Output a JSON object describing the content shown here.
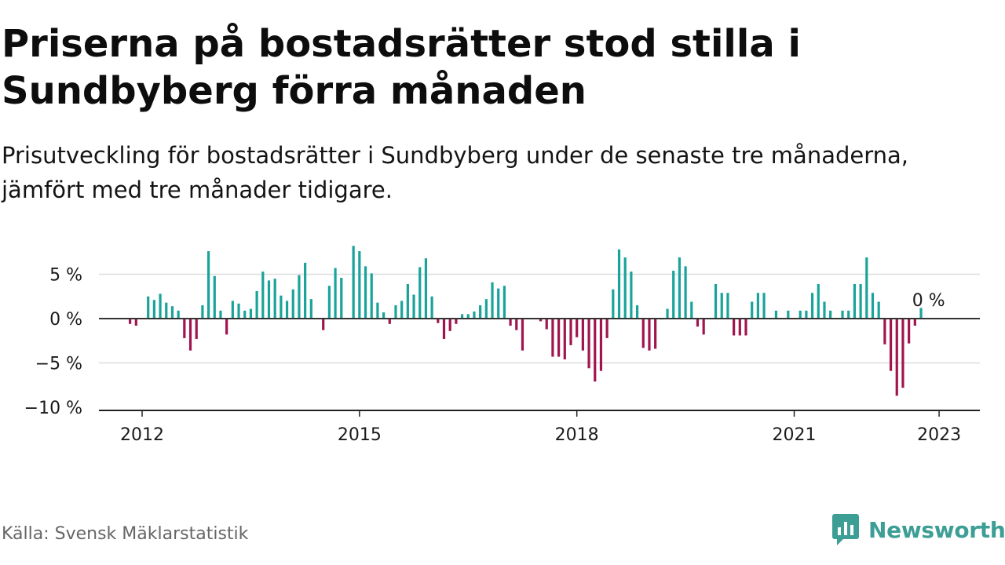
{
  "title": "Priserna på bostadsrätter stod stilla i Sundbyberg förra månaden",
  "subtitle": "Prisutveckling för bostadsrätter i Sundbyberg under de senaste tre månaderna, jämfört med tre månader tidigare.",
  "source": "Källa: Svensk Mäklarstatistik",
  "brand": {
    "name": "Newsworthy",
    "icon": "newsworthy-logo-icon",
    "color": "#3d9e96"
  },
  "colors": {
    "positive": "#1aa39a",
    "negative": "#a0154f",
    "zero_line": "#333333",
    "grid": "#dddddd"
  },
  "chart_data": {
    "type": "bar",
    "title": "",
    "xlabel": "",
    "ylabel": "",
    "ylim": [
      -10.5,
      9
    ],
    "y_ticks": [
      5,
      0,
      -5,
      -10
    ],
    "y_tick_labels": [
      "5 %",
      "0 %",
      "−5 %",
      "−10 %"
    ],
    "x_ticks": [
      "2012-01",
      "2015-01",
      "2018-01",
      "2021-01",
      "2023-01"
    ],
    "x_tick_labels": [
      "2012",
      "2015",
      "2018",
      "2021",
      "2023"
    ],
    "grid": true,
    "annotation": {
      "month": "2022-11",
      "text": "0 %"
    },
    "series": [
      {
        "values": [
          [
            "2011-11",
            -0.6
          ],
          [
            "2011-12",
            -0.8
          ],
          [
            "2012-01",
            0
          ],
          [
            "2012-02",
            2.5
          ],
          [
            "2012-03",
            2.1
          ],
          [
            "2012-04",
            2.8
          ],
          [
            "2012-05",
            1.8
          ],
          [
            "2012-06",
            1.4
          ],
          [
            "2012-07",
            0.9
          ],
          [
            "2012-08",
            -2.2
          ],
          [
            "2012-09",
            -3.6
          ],
          [
            "2012-10",
            -2.3
          ],
          [
            "2012-11",
            1.5
          ],
          [
            "2012-12",
            7.6
          ],
          [
            "2013-01",
            4.8
          ],
          [
            "2013-02",
            0.9
          ],
          [
            "2013-03",
            -1.8
          ],
          [
            "2013-04",
            2.0
          ],
          [
            "2013-05",
            1.7
          ],
          [
            "2013-06",
            0.9
          ],
          [
            "2013-07",
            1.1
          ],
          [
            "2013-08",
            3.1
          ],
          [
            "2013-09",
            5.3
          ],
          [
            "2013-10",
            4.3
          ],
          [
            "2013-11",
            4.5
          ],
          [
            "2013-12",
            2.6
          ],
          [
            "2014-01",
            2.0
          ],
          [
            "2014-02",
            3.3
          ],
          [
            "2014-03",
            4.9
          ],
          [
            "2014-04",
            6.3
          ],
          [
            "2014-05",
            2.2
          ],
          [
            "2014-06",
            0
          ],
          [
            "2014-07",
            -1.3
          ],
          [
            "2014-08",
            3.7
          ],
          [
            "2014-09",
            5.7
          ],
          [
            "2014-10",
            4.6
          ],
          [
            "2014-11",
            0
          ],
          [
            "2014-12",
            8.2
          ],
          [
            "2015-01",
            7.6
          ],
          [
            "2015-02",
            5.9
          ],
          [
            "2015-03",
            5.1
          ],
          [
            "2015-04",
            1.8
          ],
          [
            "2015-05",
            0.7
          ],
          [
            "2015-06",
            -0.6
          ],
          [
            "2015-07",
            1.5
          ],
          [
            "2015-08",
            2.0
          ],
          [
            "2015-09",
            3.9
          ],
          [
            "2015-10",
            2.7
          ],
          [
            "2015-11",
            5.8
          ],
          [
            "2015-12",
            6.8
          ],
          [
            "2016-01",
            2.5
          ],
          [
            "2016-02",
            -0.5
          ],
          [
            "2016-03",
            -2.3
          ],
          [
            "2016-04",
            -1.4
          ],
          [
            "2016-05",
            -0.6
          ],
          [
            "2016-06",
            0.5
          ],
          [
            "2016-07",
            0.5
          ],
          [
            "2016-08",
            0.8
          ],
          [
            "2016-09",
            1.5
          ],
          [
            "2016-10",
            2.2
          ],
          [
            "2016-11",
            4.1
          ],
          [
            "2016-12",
            3.4
          ],
          [
            "2017-01",
            3.7
          ],
          [
            "2017-02",
            -0.8
          ],
          [
            "2017-03",
            -1.3
          ],
          [
            "2017-04",
            -3.6
          ],
          [
            "2017-05",
            0
          ],
          [
            "2017-06",
            0
          ],
          [
            "2017-07",
            -0.3
          ],
          [
            "2017-08",
            -1.2
          ],
          [
            "2017-09",
            -4.3
          ],
          [
            "2017-10",
            -4.3
          ],
          [
            "2017-11",
            -4.6
          ],
          [
            "2017-12",
            -3.0
          ],
          [
            "2018-01",
            -2.1
          ],
          [
            "2018-02",
            -3.6
          ],
          [
            "2018-03",
            -5.6
          ],
          [
            "2018-04",
            -7.1
          ],
          [
            "2018-05",
            -5.9
          ],
          [
            "2018-06",
            -2.2
          ],
          [
            "2018-07",
            3.3
          ],
          [
            "2018-08",
            7.8
          ],
          [
            "2018-09",
            6.9
          ],
          [
            "2018-10",
            5.3
          ],
          [
            "2018-11",
            1.5
          ],
          [
            "2018-12",
            -3.3
          ],
          [
            "2019-01",
            -3.6
          ],
          [
            "2019-02",
            -3.4
          ],
          [
            "2019-03",
            -0.1
          ],
          [
            "2019-04",
            1.1
          ],
          [
            "2019-05",
            5.4
          ],
          [
            "2019-06",
            6.9
          ],
          [
            "2019-07",
            5.9
          ],
          [
            "2019-08",
            1.9
          ],
          [
            "2019-09",
            -0.9
          ],
          [
            "2019-10",
            -1.8
          ],
          [
            "2019-11",
            0
          ],
          [
            "2019-12",
            3.9
          ],
          [
            "2020-01",
            2.9
          ],
          [
            "2020-02",
            2.9
          ],
          [
            "2020-03",
            -1.9
          ],
          [
            "2020-04",
            -1.9
          ],
          [
            "2020-05",
            -1.9
          ],
          [
            "2020-06",
            1.9
          ],
          [
            "2020-07",
            2.9
          ],
          [
            "2020-08",
            2.9
          ],
          [
            "2020-09",
            0
          ],
          [
            "2020-10",
            0.9
          ],
          [
            "2020-11",
            0
          ],
          [
            "2020-12",
            0.9
          ],
          [
            "2021-01",
            0
          ],
          [
            "2021-02",
            0.9
          ],
          [
            "2021-03",
            0.9
          ],
          [
            "2021-04",
            2.9
          ],
          [
            "2021-05",
            3.9
          ],
          [
            "2021-06",
            1.9
          ],
          [
            "2021-07",
            0.9
          ],
          [
            "2021-08",
            0
          ],
          [
            "2021-09",
            0.9
          ],
          [
            "2021-10",
            0.9
          ],
          [
            "2021-11",
            3.9
          ],
          [
            "2021-12",
            3.9
          ],
          [
            "2022-01",
            6.9
          ],
          [
            "2022-02",
            2.9
          ],
          [
            "2022-03",
            1.9
          ],
          [
            "2022-04",
            -2.9
          ],
          [
            "2022-05",
            -5.9
          ],
          [
            "2022-06",
            -8.7
          ],
          [
            "2022-07",
            -7.8
          ],
          [
            "2022-08",
            -2.8
          ],
          [
            "2022-09",
            -0.8
          ],
          [
            "2022-10",
            1.2
          ],
          [
            "2022-11",
            0
          ]
        ]
      }
    ]
  }
}
